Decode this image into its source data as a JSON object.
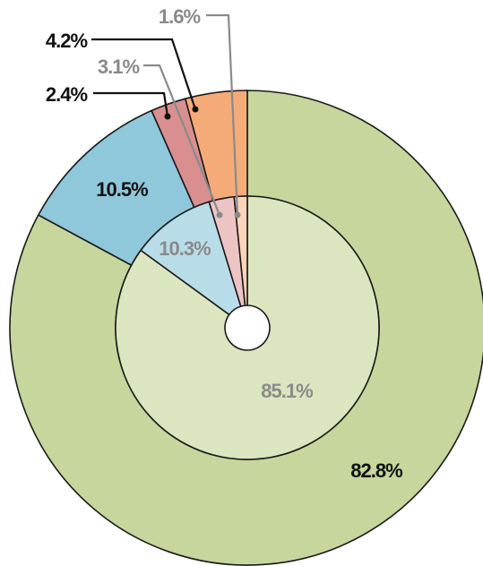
{
  "chart_data": {
    "type": "donut",
    "series": [
      {
        "values": [
          82.8,
          10.5,
          2.4,
          4.2
        ],
        "value_labels": [
          "82.8%",
          "10.5%",
          "2.4%",
          "4.2%"
        ],
        "colors": [
          "#c6d69c",
          "#8fc7db",
          "#d98e90",
          "#f5ab78"
        ],
        "label_color": "#111111"
      },
      {
        "values": [
          85.1,
          10.3,
          3.1,
          1.6
        ],
        "value_labels": [
          "85.1%",
          "10.3%",
          "3.1%",
          "1.6%"
        ],
        "colors": [
          "#dbe5c0",
          "#b9dde8",
          "#edc4c4",
          "#fbd4b9"
        ],
        "label_color": "#8a8a8a"
      }
    ]
  }
}
